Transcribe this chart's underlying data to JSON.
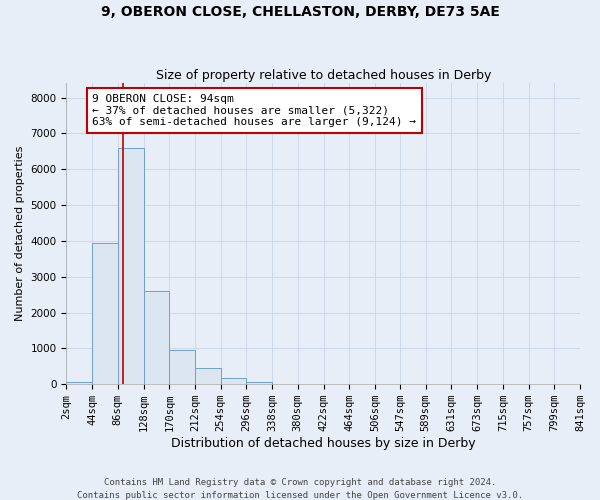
{
  "title": "9, OBERON CLOSE, CHELLASTON, DERBY, DE73 5AE",
  "subtitle": "Size of property relative to detached houses in Derby",
  "xlabel": "Distribution of detached houses by size in Derby",
  "ylabel": "Number of detached properties",
  "footer_line1": "Contains HM Land Registry data © Crown copyright and database right 2024.",
  "footer_line2": "Contains public sector information licensed under the Open Government Licence v3.0.",
  "annotation_line1": "9 OBERON CLOSE: 94sqm",
  "annotation_line2": "← 37% of detached houses are smaller (5,322)",
  "annotation_line3": "63% of semi-detached houses are larger (9,124) →",
  "property_size": 94,
  "bin_edges": [
    2,
    44,
    86,
    128,
    170,
    212,
    254,
    296,
    338,
    380,
    422,
    464,
    506,
    547,
    589,
    631,
    673,
    715,
    757,
    799,
    841
  ],
  "bin_counts": [
    50,
    3950,
    6600,
    2600,
    950,
    450,
    175,
    75,
    0,
    0,
    0,
    0,
    0,
    0,
    0,
    0,
    0,
    0,
    0,
    0
  ],
  "bar_facecolor": "#dce6f1",
  "bar_edgecolor": "#6fa0d0",
  "vline_color": "#c00000",
  "annotation_box_edgecolor": "#c00000",
  "annotation_box_facecolor": "#ffffff",
  "grid_color": "#c8d4e8",
  "background_color": "#e8eef8",
  "ylim": [
    0,
    8400
  ],
  "yticks": [
    0,
    1000,
    2000,
    3000,
    4000,
    5000,
    6000,
    7000,
    8000
  ],
  "title_fontsize": 10,
  "subtitle_fontsize": 9,
  "xlabel_fontsize": 9,
  "ylabel_fontsize": 8,
  "tick_fontsize": 7.5,
  "annotation_fontsize": 8,
  "footer_fontsize": 6.5
}
